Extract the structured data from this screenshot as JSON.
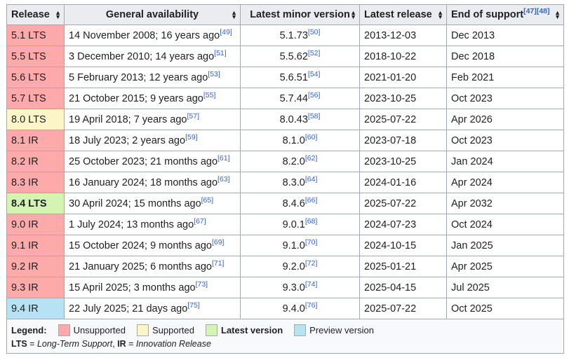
{
  "headers": {
    "release": "Release",
    "ga": "General availability",
    "minor": "Latest minor version",
    "latest": "Latest release",
    "eos": "End of support",
    "eos_refs": "[47][48]"
  },
  "rows": [
    {
      "release": "5.1 LTS",
      "status": "unsupported",
      "ga": "14 November 2008; 16 years ago",
      "ga_ref": "[49]",
      "minor": "5.1.73",
      "minor_ref": "[50]",
      "latest": "2013-12-03",
      "eos": "Dec 2013"
    },
    {
      "release": "5.5 LTS",
      "status": "unsupported",
      "ga": "3 December 2010; 14 years ago",
      "ga_ref": "[51]",
      "minor": "5.5.62",
      "minor_ref": "[52]",
      "latest": "2018-10-22",
      "eos": "Dec 2018"
    },
    {
      "release": "5.6 LTS",
      "status": "unsupported",
      "ga": "5 February 2013; 12 years ago",
      "ga_ref": "[53]",
      "minor": "5.6.51",
      "minor_ref": "[54]",
      "latest": "2021-01-20",
      "eos": "Feb 2021"
    },
    {
      "release": "5.7 LTS",
      "status": "unsupported",
      "ga": "21 October 2015; 9 years ago",
      "ga_ref": "[55]",
      "minor": "5.7.44",
      "minor_ref": "[56]",
      "latest": "2023-10-25",
      "eos": "Oct 2023"
    },
    {
      "release": "8.0 LTS",
      "status": "supported",
      "ga": "19 April 2018; 7 years ago",
      "ga_ref": "[57]",
      "minor": "8.0.43",
      "minor_ref": "[58]",
      "latest": "2025-07-22",
      "eos": "Apr 2026"
    },
    {
      "release": "8.1 IR",
      "status": "unsupported",
      "ga": "18 July 2023; 2 years ago",
      "ga_ref": "[59]",
      "minor": "8.1.0",
      "minor_ref": "[60]",
      "latest": "2023-07-18",
      "eos": "Oct 2023"
    },
    {
      "release": "8.2 IR",
      "status": "unsupported",
      "ga": "25 October 2023; 21 months ago",
      "ga_ref": "[61]",
      "minor": "8.2.0",
      "minor_ref": "[62]",
      "latest": "2023-10-25",
      "eos": "Jan 2024"
    },
    {
      "release": "8.3 IR",
      "status": "unsupported",
      "ga": "16 January 2024; 18 months ago",
      "ga_ref": "[63]",
      "minor": "8.3.0",
      "minor_ref": "[64]",
      "latest": "2024-01-16",
      "eos": "Apr 2024"
    },
    {
      "release": "8.4 LTS",
      "status": "latest",
      "ga": "30 April 2024; 15 months ago",
      "ga_ref": "[65]",
      "minor": "8.4.6",
      "minor_ref": "[66]",
      "latest": "2025-07-22",
      "eos": "Apr 2032"
    },
    {
      "release": "9.0 IR",
      "status": "unsupported",
      "ga": "1 July 2024; 13 months ago",
      "ga_ref": "[67]",
      "minor": "9.0.1",
      "minor_ref": "[68]",
      "latest": "2024-07-23",
      "eos": "Oct 2024"
    },
    {
      "release": "9.1 IR",
      "status": "unsupported",
      "ga": "15 October 2024; 9 months ago",
      "ga_ref": "[69]",
      "minor": "9.1.0",
      "minor_ref": "[70]",
      "latest": "2024-10-15",
      "eos": "Jan 2025"
    },
    {
      "release": "9.2 IR",
      "status": "unsupported",
      "ga": "21 January 2025; 6 months ago",
      "ga_ref": "[71]",
      "minor": "9.2.0",
      "minor_ref": "[72]",
      "latest": "2025-01-21",
      "eos": "Apr 2025"
    },
    {
      "release": "9.3 IR",
      "status": "unsupported",
      "ga": "15 April 2025; 3 months ago",
      "ga_ref": "[73]",
      "minor": "9.3.0",
      "minor_ref": "[74]",
      "latest": "2025-04-15",
      "eos": "Jul 2025"
    },
    {
      "release": "9.4 IR",
      "status": "preview",
      "ga": "22 July 2025; 21 days ago",
      "ga_ref": "[75]",
      "minor": "9.4.0",
      "minor_ref": "[76]",
      "latest": "2025-07-22",
      "eos": "Oct 2025"
    }
  ],
  "legend": {
    "title": "Legend:",
    "items": [
      {
        "label": "Unsupported",
        "color": "#ffaaaa"
      },
      {
        "label": "Supported",
        "color": "#fcf5c7"
      },
      {
        "label": "Latest version",
        "color": "#d4f4b4"
      },
      {
        "label": "Preview version",
        "color": "#b6e2f3"
      }
    ],
    "note": {
      "lts_abbr": "LTS",
      "lts_eq": " = ",
      "lts_full": "Long-Term Support",
      "sep": ", ",
      "ir_abbr": "IR",
      "ir_eq": " = ",
      "ir_full": "Innovation Release"
    }
  },
  "sort_glyph_up": "▲",
  "sort_glyph_down": "▼"
}
